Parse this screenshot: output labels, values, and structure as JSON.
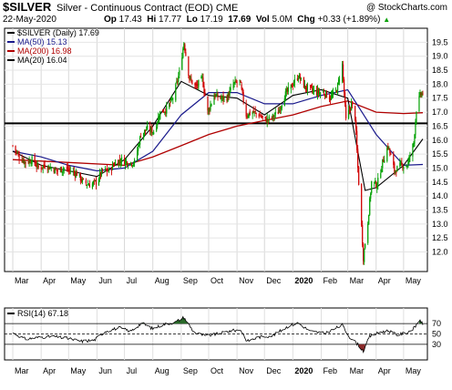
{
  "header": {
    "symbol": "$SILVER",
    "subtitle": "Silver - Continuous Contract (EOD)",
    "exchange": "CME",
    "date": "22-May-2020",
    "open_label": "Op",
    "open": "17.43",
    "high_label": "Hi",
    "high": "17.77",
    "low_label": "Lo",
    "low": "17.19",
    "close": "17.69",
    "vol_label": "Vol",
    "vol": "5.0M",
    "chg_label": "Chg",
    "chg": "+0.33 (+1.89%)",
    "chg_arrow": "▲",
    "brand": "@ StockCharts.com"
  },
  "colors": {
    "ma50": "#1a1a8c",
    "ma200": "#b00000",
    "ma20": "#000000",
    "up": "#00a000",
    "down": "#d00000",
    "rsi_fill_high": "#2a6a2a",
    "rsi_fill_low": "#8a2a2a"
  },
  "chart_data": [
    {
      "type": "candlestick",
      "title": "$SILVER (Daily) 17.69",
      "series": [
        {
          "name": "$SILVER (Daily) 17.69",
          "type": "candles"
        },
        {
          "name": "MA(50) 15.13",
          "type": "line"
        },
        {
          "name": "MA(200) 16.98",
          "type": "line"
        },
        {
          "name": "MA(20) 16.04",
          "type": "line"
        }
      ],
      "ylim": [
        11.3,
        20.0
      ],
      "y_ticks": [
        "12.0",
        "12.5",
        "13.0",
        "13.5",
        "14.0",
        "14.5",
        "15.0",
        "15.5",
        "16.0",
        "16.5",
        "17.0",
        "17.5",
        "18.0",
        "18.5",
        "19.0",
        "19.5"
      ],
      "x_ticks": [
        "Mar",
        "Apr",
        "May",
        "Jun",
        "Jul",
        "Aug",
        "Sep",
        "Oct",
        "Nov",
        "Dec",
        "2020",
        "Feb",
        "Mar",
        "Apr",
        "May"
      ],
      "horizontal_line": 16.6,
      "close_points": [
        {
          "x": "2019-03-01",
          "y": 15.8
        },
        {
          "x": "2019-03-08",
          "y": 15.4
        },
        {
          "x": "2019-03-15",
          "y": 15.2
        },
        {
          "x": "2019-03-22",
          "y": 15.3
        },
        {
          "x": "2019-03-29",
          "y": 15.0
        },
        {
          "x": "2019-04-05",
          "y": 15.1
        },
        {
          "x": "2019-04-12",
          "y": 15.0
        },
        {
          "x": "2019-04-19",
          "y": 14.9
        },
        {
          "x": "2019-04-26",
          "y": 15.0
        },
        {
          "x": "2019-05-03",
          "y": 14.9
        },
        {
          "x": "2019-05-10",
          "y": 14.8
        },
        {
          "x": "2019-05-17",
          "y": 14.5
        },
        {
          "x": "2019-05-24",
          "y": 14.4
        },
        {
          "x": "2019-05-31",
          "y": 14.5
        },
        {
          "x": "2019-06-07",
          "y": 14.9
        },
        {
          "x": "2019-06-14",
          "y": 14.9
        },
        {
          "x": "2019-06-21",
          "y": 15.2
        },
        {
          "x": "2019-06-28",
          "y": 15.3
        },
        {
          "x": "2019-07-05",
          "y": 15.2
        },
        {
          "x": "2019-07-12",
          "y": 15.2
        },
        {
          "x": "2019-07-19",
          "y": 16.2
        },
        {
          "x": "2019-07-26",
          "y": 16.4
        },
        {
          "x": "2019-08-02",
          "y": 16.3
        },
        {
          "x": "2019-08-09",
          "y": 17.0
        },
        {
          "x": "2019-08-16",
          "y": 17.1
        },
        {
          "x": "2019-08-23",
          "y": 17.5
        },
        {
          "x": "2019-08-30",
          "y": 18.4
        },
        {
          "x": "2019-09-04",
          "y": 19.5
        },
        {
          "x": "2019-09-10",
          "y": 18.2
        },
        {
          "x": "2019-09-17",
          "y": 17.9
        },
        {
          "x": "2019-09-24",
          "y": 18.2
        },
        {
          "x": "2019-09-30",
          "y": 17.0
        },
        {
          "x": "2019-10-07",
          "y": 17.6
        },
        {
          "x": "2019-10-14",
          "y": 17.5
        },
        {
          "x": "2019-10-21",
          "y": 17.5
        },
        {
          "x": "2019-10-28",
          "y": 18.0
        },
        {
          "x": "2019-11-04",
          "y": 18.1
        },
        {
          "x": "2019-11-11",
          "y": 16.9
        },
        {
          "x": "2019-11-18",
          "y": 17.0
        },
        {
          "x": "2019-11-25",
          "y": 16.9
        },
        {
          "x": "2019-12-02",
          "y": 16.7
        },
        {
          "x": "2019-12-09",
          "y": 16.8
        },
        {
          "x": "2019-12-16",
          "y": 17.0
        },
        {
          "x": "2019-12-23",
          "y": 17.6
        },
        {
          "x": "2019-12-30",
          "y": 17.9
        },
        {
          "x": "2020-01-07",
          "y": 18.3
        },
        {
          "x": "2020-01-14",
          "y": 17.9
        },
        {
          "x": "2020-01-21",
          "y": 17.8
        },
        {
          "x": "2020-01-28",
          "y": 17.7
        },
        {
          "x": "2020-02-04",
          "y": 17.7
        },
        {
          "x": "2020-02-11",
          "y": 17.5
        },
        {
          "x": "2020-02-18",
          "y": 17.8
        },
        {
          "x": "2020-02-24",
          "y": 18.7
        },
        {
          "x": "2020-02-28",
          "y": 16.7
        },
        {
          "x": "2020-03-05",
          "y": 17.3
        },
        {
          "x": "2020-03-09",
          "y": 16.8
        },
        {
          "x": "2020-03-12",
          "y": 15.0
        },
        {
          "x": "2020-03-16",
          "y": 12.9
        },
        {
          "x": "2020-03-18",
          "y": 11.8
        },
        {
          "x": "2020-03-23",
          "y": 13.1
        },
        {
          "x": "2020-03-27",
          "y": 14.5
        },
        {
          "x": "2020-04-02",
          "y": 14.4
        },
        {
          "x": "2020-04-08",
          "y": 15.2
        },
        {
          "x": "2020-04-14",
          "y": 15.8
        },
        {
          "x": "2020-04-21",
          "y": 14.9
        },
        {
          "x": "2020-04-28",
          "y": 15.1
        },
        {
          "x": "2020-05-05",
          "y": 15.1
        },
        {
          "x": "2020-05-12",
          "y": 15.9
        },
        {
          "x": "2020-05-15",
          "y": 17.1
        },
        {
          "x": "2020-05-19",
          "y": 17.6
        },
        {
          "x": "2020-05-22",
          "y": 17.69
        }
      ],
      "ma50_points": [
        {
          "x": "2019-03-01",
          "y": 15.6
        },
        {
          "x": "2019-04-01",
          "y": 15.4
        },
        {
          "x": "2019-05-01",
          "y": 15.1
        },
        {
          "x": "2019-06-01",
          "y": 14.9
        },
        {
          "x": "2019-07-01",
          "y": 15.0
        },
        {
          "x": "2019-08-01",
          "y": 15.6
        },
        {
          "x": "2019-09-01",
          "y": 16.9
        },
        {
          "x": "2019-10-01",
          "y": 17.7
        },
        {
          "x": "2019-11-01",
          "y": 17.7
        },
        {
          "x": "2019-12-01",
          "y": 17.3
        },
        {
          "x": "2020-01-01",
          "y": 17.3
        },
        {
          "x": "2020-02-01",
          "y": 17.6
        },
        {
          "x": "2020-03-01",
          "y": 17.8
        },
        {
          "x": "2020-04-01",
          "y": 16.2
        },
        {
          "x": "2020-05-01",
          "y": 15.1
        },
        {
          "x": "2020-05-22",
          "y": 15.13
        }
      ],
      "ma200_points": [
        {
          "x": "2019-03-01",
          "y": 15.3
        },
        {
          "x": "2019-05-01",
          "y": 15.2
        },
        {
          "x": "2019-07-01",
          "y": 15.1
        },
        {
          "x": "2019-08-01",
          "y": 15.4
        },
        {
          "x": "2019-09-01",
          "y": 15.8
        },
        {
          "x": "2019-10-01",
          "y": 16.2
        },
        {
          "x": "2019-11-01",
          "y": 16.5
        },
        {
          "x": "2019-12-01",
          "y": 16.7
        },
        {
          "x": "2020-01-01",
          "y": 16.9
        },
        {
          "x": "2020-02-01",
          "y": 17.2
        },
        {
          "x": "2020-03-01",
          "y": 17.4
        },
        {
          "x": "2020-04-01",
          "y": 17.0
        },
        {
          "x": "2020-05-01",
          "y": 16.95
        },
        {
          "x": "2020-05-22",
          "y": 16.98
        }
      ],
      "ma20_points": [
        {
          "x": "2019-03-01",
          "y": 15.6
        },
        {
          "x": "2019-04-01",
          "y": 15.1
        },
        {
          "x": "2019-05-01",
          "y": 14.9
        },
        {
          "x": "2019-06-01",
          "y": 14.7
        },
        {
          "x": "2019-07-01",
          "y": 15.3
        },
        {
          "x": "2019-08-01",
          "y": 16.5
        },
        {
          "x": "2019-09-01",
          "y": 18.1
        },
        {
          "x": "2019-10-01",
          "y": 17.6
        },
        {
          "x": "2019-11-01",
          "y": 17.5
        },
        {
          "x": "2019-12-01",
          "y": 16.9
        },
        {
          "x": "2020-01-01",
          "y": 17.6
        },
        {
          "x": "2020-02-01",
          "y": 17.8
        },
        {
          "x": "2020-03-01",
          "y": 17.5
        },
        {
          "x": "2020-03-20",
          "y": 14.2
        },
        {
          "x": "2020-04-01",
          "y": 14.3
        },
        {
          "x": "2020-05-01",
          "y": 15.1
        },
        {
          "x": "2020-05-22",
          "y": 16.04
        }
      ]
    },
    {
      "type": "line",
      "title": "RSI(14) 67.18",
      "series": [
        {
          "name": "RSI(14) 67.18"
        }
      ],
      "ylim": [
        0,
        100
      ],
      "y_ticks": [
        "30",
        "50",
        "70"
      ],
      "reference_lines": [
        30,
        50,
        70
      ],
      "x_ticks": [
        "Mar",
        "Apr",
        "May",
        "Jun",
        "Jul",
        "Aug",
        "Sep",
        "Oct",
        "Nov",
        "Dec",
        "2020",
        "Feb",
        "Mar",
        "Apr",
        "May"
      ],
      "points": [
        {
          "x": "2019-03-01",
          "y": 52
        },
        {
          "x": "2019-03-15",
          "y": 40
        },
        {
          "x": "2019-04-01",
          "y": 44
        },
        {
          "x": "2019-04-15",
          "y": 45
        },
        {
          "x": "2019-05-01",
          "y": 41
        },
        {
          "x": "2019-05-15",
          "y": 36
        },
        {
          "x": "2019-05-29",
          "y": 38
        },
        {
          "x": "2019-06-10",
          "y": 55
        },
        {
          "x": "2019-06-25",
          "y": 62
        },
        {
          "x": "2019-07-08",
          "y": 55
        },
        {
          "x": "2019-07-20",
          "y": 71
        },
        {
          "x": "2019-08-01",
          "y": 60
        },
        {
          "x": "2019-08-12",
          "y": 68
        },
        {
          "x": "2019-08-26",
          "y": 73
        },
        {
          "x": "2019-09-04",
          "y": 82
        },
        {
          "x": "2019-09-15",
          "y": 53
        },
        {
          "x": "2019-09-28",
          "y": 46
        },
        {
          "x": "2019-10-10",
          "y": 50
        },
        {
          "x": "2019-10-25",
          "y": 56
        },
        {
          "x": "2019-11-05",
          "y": 58
        },
        {
          "x": "2019-11-12",
          "y": 36
        },
        {
          "x": "2019-11-25",
          "y": 44
        },
        {
          "x": "2019-12-10",
          "y": 47
        },
        {
          "x": "2019-12-28",
          "y": 66
        },
        {
          "x": "2020-01-07",
          "y": 71
        },
        {
          "x": "2020-01-20",
          "y": 55
        },
        {
          "x": "2020-02-05",
          "y": 51
        },
        {
          "x": "2020-02-24",
          "y": 67
        },
        {
          "x": "2020-03-02",
          "y": 46
        },
        {
          "x": "2020-03-12",
          "y": 30
        },
        {
          "x": "2020-03-18",
          "y": 17
        },
        {
          "x": "2020-03-25",
          "y": 45
        },
        {
          "x": "2020-04-06",
          "y": 54
        },
        {
          "x": "2020-04-15",
          "y": 56
        },
        {
          "x": "2020-04-24",
          "y": 48
        },
        {
          "x": "2020-05-05",
          "y": 53
        },
        {
          "x": "2020-05-13",
          "y": 62
        },
        {
          "x": "2020-05-19",
          "y": 78
        },
        {
          "x": "2020-05-22",
          "y": 67.18
        }
      ]
    }
  ]
}
